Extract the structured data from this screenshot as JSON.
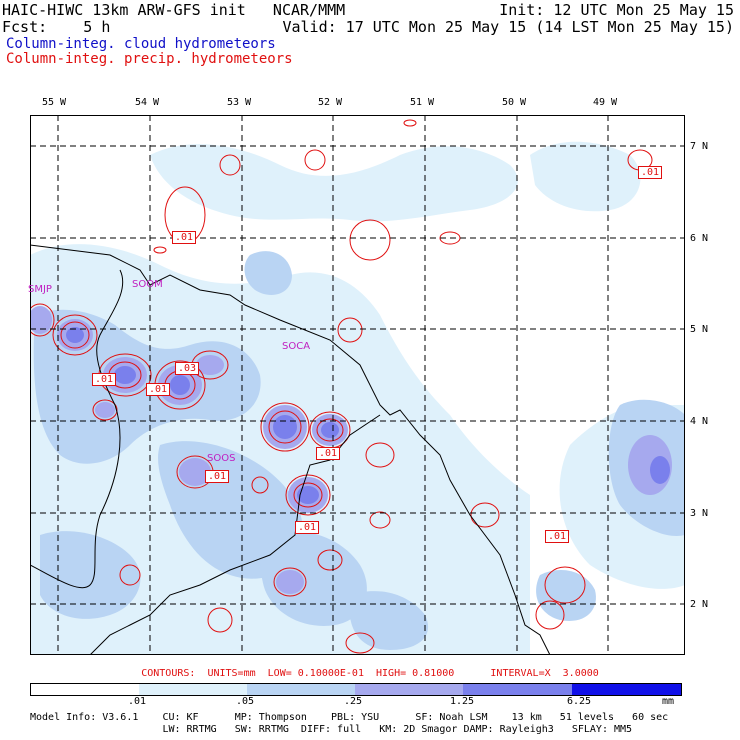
{
  "header": {
    "line1_left": "HAIC-HIWC 13km ARW-GFS init   NCAR/MMM",
    "line1_right": "Init: 12 UTC Mon 25 May 15",
    "line2_left": "Fcst:    5 h",
    "line2_right": "Valid: 17 UTC Mon 25 May 15 (14 LST Mon 25 May 15)",
    "line3": "Column-integ. cloud hydrometeors",
    "line4": "Column-integ. precip. hydrometeors"
  },
  "lon_labels": [
    "55 W",
    "54 W",
    "53 W",
    "52 W",
    "51 W",
    "50 W",
    "49 W"
  ],
  "lat_labels": [
    "7 N",
    "6 N",
    "5 N",
    "4 N",
    "3 N",
    "2 N"
  ],
  "stations": [
    "SMJP",
    "SOOM",
    "SOCA",
    "SOOS"
  ],
  "contour_labels": [
    ".01",
    ".01",
    ".03",
    ".01",
    ".01",
    ".01",
    ".01",
    ".01",
    ".01"
  ],
  "contours_line": "CONTOURS:  UNITS=mm  LOW= 0.10000E-01  HIGH= 0.81000      INTERVAL=X  3.0000",
  "legend": {
    "colors": [
      "#ffffff",
      "#dff1fb",
      "#b9d4f3",
      "#a6a9ee",
      "#7a80ec",
      "#4e4ef0",
      "#1010e8"
    ],
    "labels": [
      ".01",
      ".05",
      ".25",
      "1.25",
      "6.25",
      "mm"
    ]
  },
  "info_line1": "Model Info: V3.6.1    CU: KF      MP: Thompson    PBL: YSU      SF: Noah LSM    13 km   51 levels   60 sec",
  "info_line2": "                      LW: RRTMG   SW: RRTMG  DIFF: full   KM: 2D Smagor DAMP: Rayleigh3   SFLAY: MM5"
}
